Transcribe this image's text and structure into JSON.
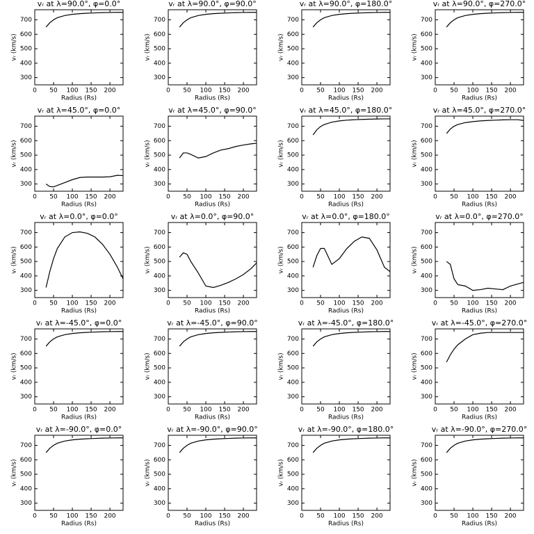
{
  "chart_data": [
    {
      "type": "line",
      "title": "vᵣ at λ=90.0°, φ=0.0°",
      "xlabel": "Radius (Rs)",
      "ylabel": "vᵣ (km/s)",
      "x": [
        30,
        40,
        50,
        60,
        80,
        100,
        120,
        140,
        160,
        180,
        200,
        220,
        235
      ],
      "values": [
        650,
        680,
        700,
        715,
        730,
        738,
        743,
        746,
        748,
        750,
        751,
        752,
        752
      ],
      "xlim": [
        0,
        235
      ],
      "ylim": [
        250,
        770
      ],
      "xticks": [
        0,
        50,
        100,
        150,
        200
      ],
      "yticks": [
        300,
        400,
        500,
        600,
        700
      ],
      "color": "#000000"
    },
    {
      "type": "line",
      "title": "vᵣ at λ=90.0°, φ=90.0°",
      "xlabel": "Radius (Rs)",
      "ylabel": "vᵣ (km/s)",
      "x": [
        30,
        40,
        50,
        60,
        80,
        100,
        120,
        140,
        160,
        180,
        200,
        220,
        235
      ],
      "values": [
        650,
        680,
        700,
        715,
        730,
        738,
        743,
        746,
        748,
        750,
        751,
        752,
        752
      ],
      "xlim": [
        0,
        235
      ],
      "ylim": [
        250,
        770
      ],
      "xticks": [
        0,
        50,
        100,
        150,
        200
      ],
      "yticks": [
        300,
        400,
        500,
        600,
        700
      ],
      "color": "#000000"
    },
    {
      "type": "line",
      "title": "vᵣ at λ=90.0°, φ=180.0°",
      "xlabel": "Radius (Rs)",
      "ylabel": "vᵣ (km/s)",
      "x": [
        30,
        40,
        50,
        60,
        80,
        100,
        120,
        140,
        160,
        180,
        200,
        220,
        235
      ],
      "values": [
        650,
        680,
        700,
        715,
        730,
        738,
        743,
        746,
        748,
        750,
        751,
        752,
        752
      ],
      "xlim": [
        0,
        235
      ],
      "ylim": [
        250,
        770
      ],
      "xticks": [
        0,
        50,
        100,
        150,
        200
      ],
      "yticks": [
        300,
        400,
        500,
        600,
        700
      ],
      "color": "#000000"
    },
    {
      "type": "line",
      "title": "vᵣ at λ=90.0°, φ=270.0°",
      "xlabel": "Radius (Rs)",
      "ylabel": "vᵣ (km/s)",
      "x": [
        30,
        40,
        50,
        60,
        80,
        100,
        120,
        140,
        160,
        180,
        200,
        220,
        235
      ],
      "values": [
        650,
        680,
        700,
        715,
        730,
        738,
        743,
        746,
        748,
        750,
        751,
        752,
        752
      ],
      "xlim": [
        0,
        235
      ],
      "ylim": [
        250,
        770
      ],
      "xticks": [
        0,
        50,
        100,
        150,
        200
      ],
      "yticks": [
        300,
        400,
        500,
        600,
        700
      ],
      "color": "#000000"
    },
    {
      "type": "line",
      "title": "vᵣ at λ=45.0°, φ=0.0°",
      "xlabel": "Radius (Rs)",
      "ylabel": "vᵣ (km/s)",
      "x": [
        30,
        40,
        50,
        60,
        80,
        100,
        120,
        140,
        160,
        180,
        200,
        220,
        235
      ],
      "values": [
        300,
        282,
        280,
        290,
        310,
        330,
        345,
        348,
        348,
        348,
        350,
        360,
        358
      ],
      "xlim": [
        0,
        235
      ],
      "ylim": [
        250,
        770
      ],
      "xticks": [
        0,
        50,
        100,
        150,
        200
      ],
      "yticks": [
        300,
        400,
        500,
        600,
        700
      ],
      "color": "#000000"
    },
    {
      "type": "line",
      "title": "vᵣ at λ=45.0°, φ=90.0°",
      "xlabel": "Radius (Rs)",
      "ylabel": "vᵣ (km/s)",
      "x": [
        30,
        40,
        50,
        60,
        80,
        100,
        120,
        140,
        160,
        180,
        200,
        220,
        235
      ],
      "values": [
        480,
        515,
        515,
        505,
        480,
        490,
        515,
        535,
        545,
        560,
        570,
        578,
        582
      ],
      "xlim": [
        0,
        235
      ],
      "ylim": [
        250,
        770
      ],
      "xticks": [
        0,
        50,
        100,
        150,
        200
      ],
      "yticks": [
        300,
        400,
        500,
        600,
        700
      ],
      "color": "#000000"
    },
    {
      "type": "line",
      "title": "vᵣ at λ=45.0°, φ=180.0°",
      "xlabel": "Radius (Rs)",
      "ylabel": "vᵣ (km/s)",
      "x": [
        30,
        40,
        50,
        60,
        80,
        100,
        120,
        140,
        160,
        180,
        200,
        220,
        235
      ],
      "values": [
        640,
        675,
        698,
        712,
        728,
        737,
        742,
        745,
        747,
        749,
        750,
        751,
        751
      ],
      "xlim": [
        0,
        235
      ],
      "ylim": [
        250,
        770
      ],
      "xticks": [
        0,
        50,
        100,
        150,
        200
      ],
      "yticks": [
        300,
        400,
        500,
        600,
        700
      ],
      "color": "#000000"
    },
    {
      "type": "line",
      "title": "vᵣ at λ=45.0°, φ=270.0°",
      "xlabel": "Radius (Rs)",
      "ylabel": "vᵣ (km/s)",
      "x": [
        30,
        40,
        50,
        60,
        80,
        100,
        120,
        140,
        160,
        180,
        200,
        220,
        235
      ],
      "values": [
        650,
        680,
        700,
        712,
        725,
        732,
        737,
        740,
        742,
        744,
        745,
        745,
        740
      ],
      "xlim": [
        0,
        235
      ],
      "ylim": [
        250,
        770
      ],
      "xticks": [
        0,
        50,
        100,
        150,
        200
      ],
      "yticks": [
        300,
        400,
        500,
        600,
        700
      ],
      "color": "#000000"
    },
    {
      "type": "line",
      "title": "vᵣ at λ=0.0°, φ=0.0°",
      "xlabel": "Radius (Rs)",
      "ylabel": "vᵣ (km/s)",
      "x": [
        30,
        40,
        50,
        60,
        80,
        100,
        120,
        140,
        160,
        180,
        200,
        220,
        235
      ],
      "values": [
        320,
        430,
        520,
        590,
        670,
        700,
        705,
        695,
        670,
        620,
        550,
        460,
        380
      ],
      "xlim": [
        0,
        235
      ],
      "ylim": [
        250,
        770
      ],
      "xticks": [
        0,
        50,
        100,
        150,
        200
      ],
      "yticks": [
        300,
        400,
        500,
        600,
        700
      ],
      "color": "#000000"
    },
    {
      "type": "line",
      "title": "vᵣ at λ=0.0°, φ=90.0°",
      "xlabel": "Radius (Rs)",
      "ylabel": "vᵣ (km/s)",
      "x": [
        30,
        40,
        50,
        60,
        80,
        100,
        120,
        140,
        160,
        180,
        200,
        220,
        235
      ],
      "values": [
        530,
        560,
        550,
        500,
        420,
        330,
        320,
        335,
        355,
        380,
        410,
        450,
        490
      ],
      "xlim": [
        0,
        235
      ],
      "ylim": [
        250,
        770
      ],
      "xticks": [
        0,
        50,
        100,
        150,
        200
      ],
      "yticks": [
        300,
        400,
        500,
        600,
        700
      ],
      "color": "#000000"
    },
    {
      "type": "line",
      "title": "vᵣ at λ=0.0°, φ=180.0°",
      "xlabel": "Radius (Rs)",
      "ylabel": "vᵣ (km/s)",
      "x": [
        30,
        40,
        50,
        60,
        80,
        100,
        120,
        140,
        160,
        180,
        200,
        220,
        235
      ],
      "values": [
        460,
        540,
        590,
        590,
        480,
        520,
        590,
        640,
        670,
        660,
        580,
        460,
        430
      ],
      "xlim": [
        0,
        235
      ],
      "ylim": [
        250,
        770
      ],
      "xticks": [
        0,
        50,
        100,
        150,
        200
      ],
      "yticks": [
        300,
        400,
        500,
        600,
        700
      ],
      "color": "#000000"
    },
    {
      "type": "line",
      "title": "vᵣ at λ=0.0°, φ=270.0°",
      "xlabel": "Radius (Rs)",
      "ylabel": "vᵣ (km/s)",
      "x": [
        30,
        40,
        50,
        60,
        80,
        100,
        120,
        140,
        160,
        180,
        200,
        220,
        235
      ],
      "values": [
        500,
        480,
        380,
        340,
        330,
        300,
        305,
        315,
        310,
        305,
        330,
        345,
        355
      ],
      "xlim": [
        0,
        235
      ],
      "ylim": [
        250,
        770
      ],
      "xticks": [
        0,
        50,
        100,
        150,
        200
      ],
      "yticks": [
        300,
        400,
        500,
        600,
        700
      ],
      "color": "#000000"
    },
    {
      "type": "line",
      "title": "vᵣ at λ=-45.0°, φ=0.0°",
      "xlabel": "Radius (Rs)",
      "ylabel": "vᵣ (km/s)",
      "x": [
        30,
        40,
        50,
        60,
        80,
        100,
        120,
        140,
        160,
        180,
        200,
        220,
        235
      ],
      "values": [
        650,
        680,
        700,
        715,
        730,
        738,
        743,
        746,
        748,
        750,
        751,
        752,
        752
      ],
      "xlim": [
        0,
        235
      ],
      "ylim": [
        250,
        770
      ],
      "xticks": [
        0,
        50,
        100,
        150,
        200
      ],
      "yticks": [
        300,
        400,
        500,
        600,
        700
      ],
      "color": "#000000"
    },
    {
      "type": "line",
      "title": "vᵣ at λ=-45.0°, φ=90.0°",
      "xlabel": "Radius (Rs)",
      "ylabel": "vᵣ (km/s)",
      "x": [
        30,
        40,
        50,
        60,
        80,
        100,
        120,
        140,
        160,
        180,
        200,
        220,
        235
      ],
      "values": [
        650,
        680,
        700,
        715,
        730,
        738,
        743,
        746,
        748,
        750,
        751,
        752,
        752
      ],
      "xlim": [
        0,
        235
      ],
      "ylim": [
        250,
        770
      ],
      "xticks": [
        0,
        50,
        100,
        150,
        200
      ],
      "yticks": [
        300,
        400,
        500,
        600,
        700
      ],
      "color": "#000000"
    },
    {
      "type": "line",
      "title": "vᵣ at λ=-45.0°, φ=180.0°",
      "xlabel": "Radius (Rs)",
      "ylabel": "vᵣ (km/s)",
      "x": [
        30,
        40,
        50,
        60,
        80,
        100,
        120,
        140,
        160,
        180,
        200,
        220,
        235
      ],
      "values": [
        650,
        680,
        700,
        715,
        730,
        738,
        743,
        746,
        748,
        750,
        751,
        752,
        752
      ],
      "xlim": [
        0,
        235
      ],
      "ylim": [
        250,
        770
      ],
      "xticks": [
        0,
        50,
        100,
        150,
        200
      ],
      "yticks": [
        300,
        400,
        500,
        600,
        700
      ],
      "color": "#000000"
    },
    {
      "type": "line",
      "title": "vᵣ at λ=-45.0°, φ=270.0°",
      "xlabel": "Radius (Rs)",
      "ylabel": "vᵣ (km/s)",
      "x": [
        30,
        40,
        50,
        60,
        80,
        100,
        120,
        140,
        160,
        180,
        200,
        220,
        235
      ],
      "values": [
        540,
        590,
        630,
        660,
        700,
        730,
        740,
        745,
        745,
        745,
        745,
        745,
        745
      ],
      "xlim": [
        0,
        235
      ],
      "ylim": [
        250,
        770
      ],
      "xticks": [
        0,
        50,
        100,
        150,
        200
      ],
      "yticks": [
        300,
        400,
        500,
        600,
        700
      ],
      "color": "#000000"
    },
    {
      "type": "line",
      "title": "vᵣ at λ=-90.0°, φ=0.0°",
      "xlabel": "Radius (Rs)",
      "ylabel": "vᵣ (km/s)",
      "x": [
        30,
        40,
        50,
        60,
        80,
        100,
        120,
        140,
        160,
        180,
        200,
        220,
        235
      ],
      "values": [
        650,
        680,
        700,
        715,
        730,
        738,
        743,
        746,
        748,
        750,
        751,
        752,
        752
      ],
      "xlim": [
        0,
        235
      ],
      "ylim": [
        250,
        770
      ],
      "xticks": [
        0,
        50,
        100,
        150,
        200
      ],
      "yticks": [
        300,
        400,
        500,
        600,
        700
      ],
      "color": "#000000"
    },
    {
      "type": "line",
      "title": "vᵣ at λ=-90.0°, φ=90.0°",
      "xlabel": "Radius (Rs)",
      "ylabel": "vᵣ (km/s)",
      "x": [
        30,
        40,
        50,
        60,
        80,
        100,
        120,
        140,
        160,
        180,
        200,
        220,
        235
      ],
      "values": [
        650,
        680,
        700,
        715,
        730,
        738,
        743,
        746,
        748,
        750,
        751,
        752,
        752
      ],
      "xlim": [
        0,
        235
      ],
      "ylim": [
        250,
        770
      ],
      "xticks": [
        0,
        50,
        100,
        150,
        200
      ],
      "yticks": [
        300,
        400,
        500,
        600,
        700
      ],
      "color": "#000000"
    },
    {
      "type": "line",
      "title": "vᵣ at λ=-90.0°, φ=180.0°",
      "xlabel": "Radius (Rs)",
      "ylabel": "vᵣ (km/s)",
      "x": [
        30,
        40,
        50,
        60,
        80,
        100,
        120,
        140,
        160,
        180,
        200,
        220,
        235
      ],
      "values": [
        650,
        680,
        700,
        715,
        730,
        738,
        743,
        746,
        748,
        750,
        751,
        752,
        752
      ],
      "xlim": [
        0,
        235
      ],
      "ylim": [
        250,
        770
      ],
      "xticks": [
        0,
        50,
        100,
        150,
        200
      ],
      "yticks": [
        300,
        400,
        500,
        600,
        700
      ],
      "color": "#000000"
    },
    {
      "type": "line",
      "title": "vᵣ at λ=-90.0°, φ=270.0°",
      "xlabel": "Radius (Rs)",
      "ylabel": "vᵣ (km/s)",
      "x": [
        30,
        40,
        50,
        60,
        80,
        100,
        120,
        140,
        160,
        180,
        200,
        220,
        235
      ],
      "values": [
        650,
        680,
        700,
        715,
        730,
        738,
        743,
        746,
        748,
        750,
        751,
        752,
        752
      ],
      "xlim": [
        0,
        235
      ],
      "ylim": [
        250,
        770
      ],
      "xticks": [
        0,
        50,
        100,
        150,
        200
      ],
      "yticks": [
        300,
        400,
        500,
        600,
        700
      ],
      "color": "#000000"
    }
  ]
}
